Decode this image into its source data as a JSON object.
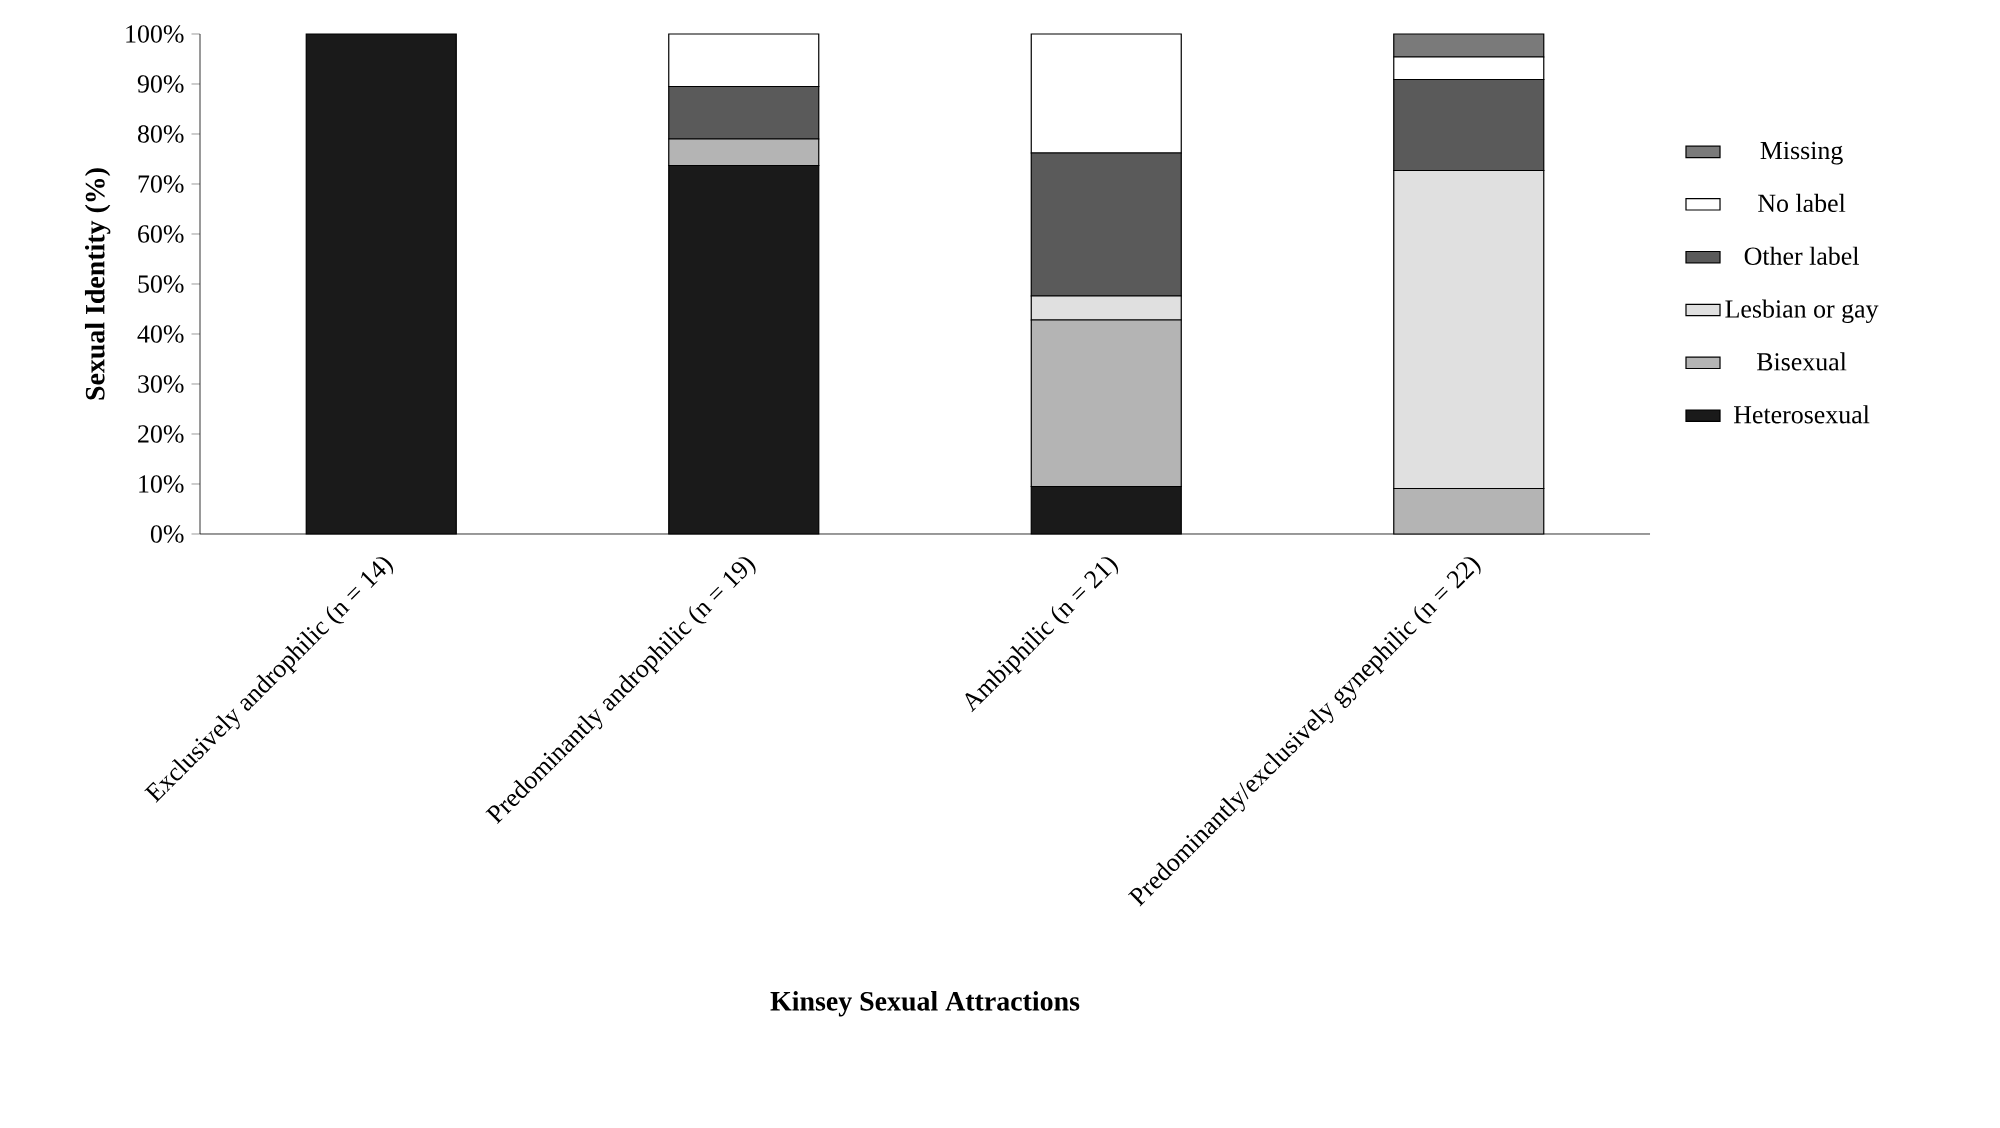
{
  "chart_data": {
    "type": "bar",
    "stacked": true,
    "xlabel": "Kinsey Sexual Attractions",
    "ylabel": "Sexual Identity (%)",
    "categories": [
      "Exclusively androphilic (n = 14)",
      "Predominantly androphilic (n = 19)",
      "Ambiphilic (n = 21)",
      "Predominantly/exclusively gynephilic (n = 22)"
    ],
    "series": [
      {
        "name": "Heterosexual",
        "color": "#1a1a1a",
        "values": [
          100,
          73.7,
          9.5,
          0
        ]
      },
      {
        "name": "Bisexual",
        "color": "#b4b4b4",
        "values": [
          0,
          5.3,
          33.3,
          9.1
        ]
      },
      {
        "name": "Lesbian or gay",
        "color": "#e0e0e0",
        "values": [
          0,
          0,
          4.8,
          63.6
        ]
      },
      {
        "name": "Other label",
        "color": "#5a5a5a",
        "values": [
          0,
          10.5,
          28.6,
          18.2
        ]
      },
      {
        "name": "No label",
        "color": "#ffffff",
        "values": [
          0,
          10.5,
          23.8,
          4.5
        ]
      },
      {
        "name": "Missing",
        "color": "#7a7a7a",
        "values": [
          0,
          0,
          0,
          4.6
        ]
      }
    ],
    "ylim": [
      0,
      100
    ],
    "yticks": [
      {
        "value": 0,
        "label": "0%"
      },
      {
        "value": 10,
        "label": "10%"
      },
      {
        "value": 20,
        "label": "20%"
      },
      {
        "value": 30,
        "label": "30%"
      },
      {
        "value": 40,
        "label": "40%"
      },
      {
        "value": 50,
        "label": "50%"
      },
      {
        "value": 60,
        "label": "60%"
      },
      {
        "value": 70,
        "label": "70%"
      },
      {
        "value": 80,
        "label": "80%"
      },
      {
        "value": 90,
        "label": "90%"
      },
      {
        "value": 100,
        "label": "100%"
      }
    ],
    "grid": false,
    "legend": "right"
  }
}
